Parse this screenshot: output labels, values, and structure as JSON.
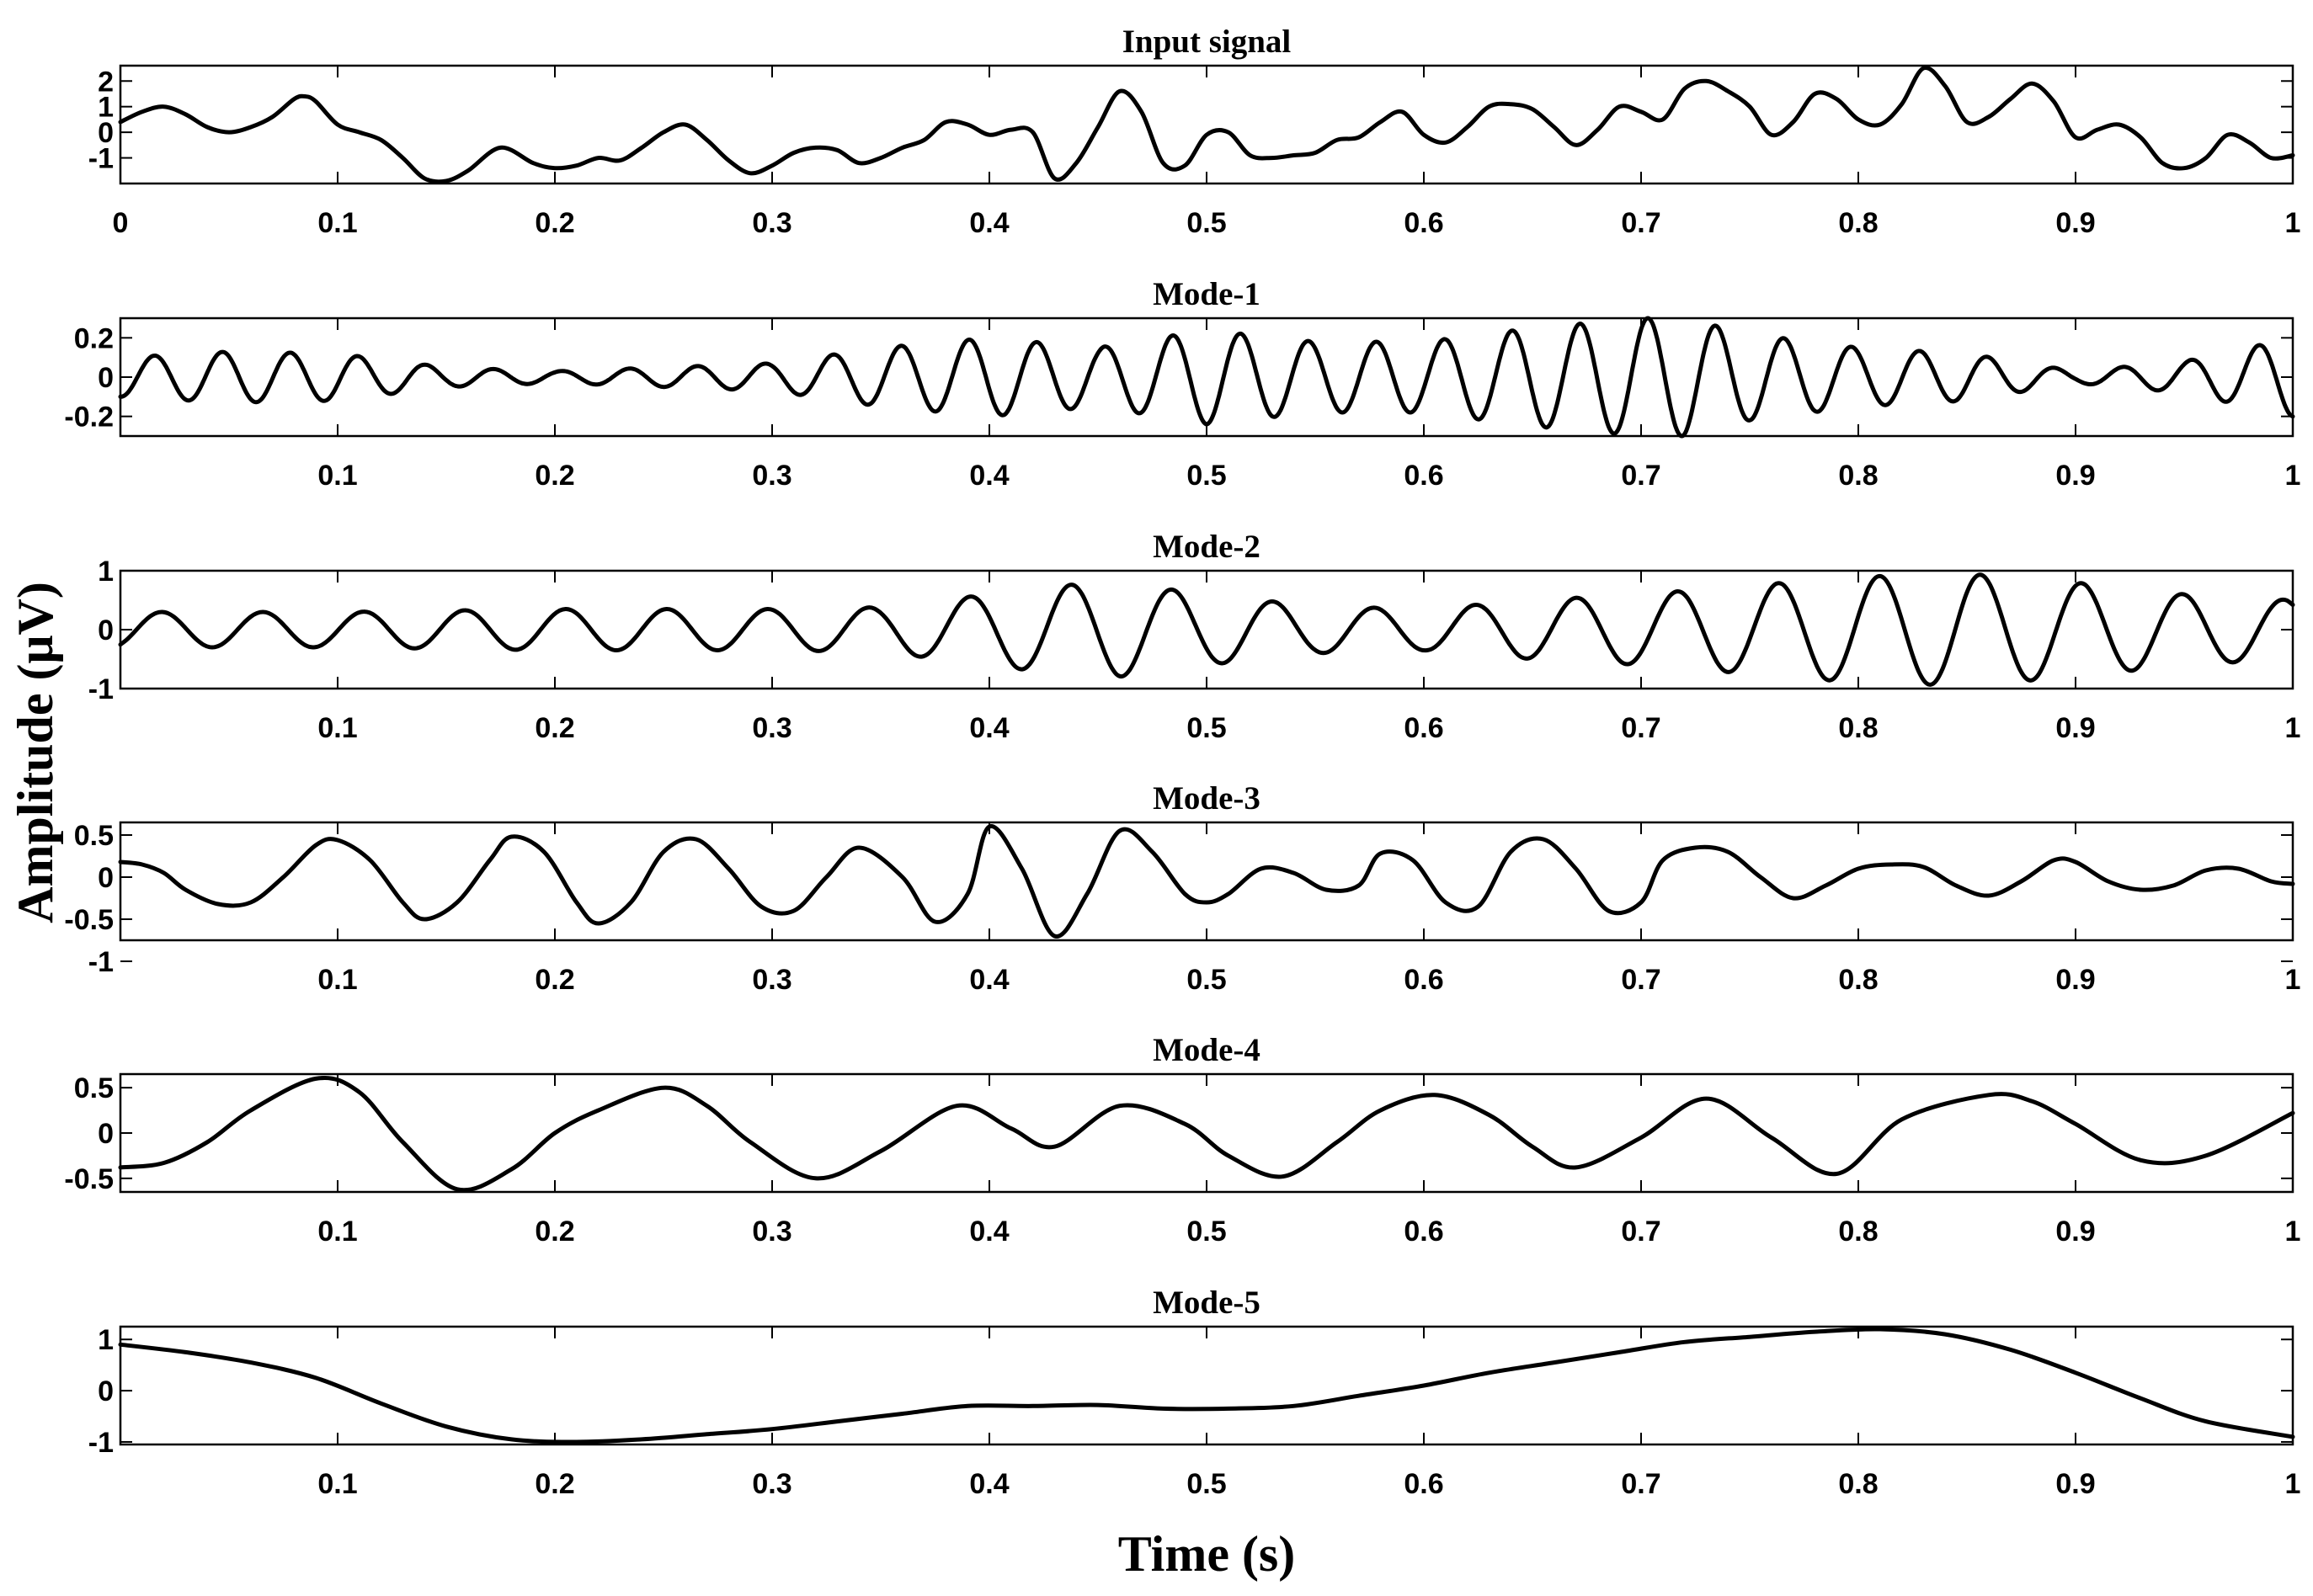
{
  "figure": {
    "xlabel": "Time (s)",
    "ylabel": "Amplitude (μV)",
    "line_color": "#000000"
  },
  "chart_data": [
    {
      "type": "line",
      "title": "Input signal",
      "xlim": [
        0,
        1
      ],
      "ylim": [
        -2,
        2.6
      ],
      "yticks": [
        2,
        1,
        0,
        -1
      ],
      "xticks": [
        0,
        0.1,
        0.2,
        0.3,
        0.4,
        0.5,
        0.6,
        0.7,
        0.8,
        0.9,
        1
      ],
      "xtick_labels": [
        "0",
        "0.1",
        "0.2",
        "0.3",
        "0.4",
        "0.5",
        "0.6",
        "0.7",
        "0.8",
        "0.9",
        "1"
      ],
      "grid": false,
      "series": [
        {
          "x": [
            0,
            0.01,
            0.02,
            0.03,
            0.04,
            0.05,
            0.06,
            0.07,
            0.08,
            0.085,
            0.09,
            0.1,
            0.11,
            0.12,
            0.13,
            0.14,
            0.15,
            0.16,
            0.175,
            0.19,
            0.2,
            0.21,
            0.22,
            0.23,
            0.24,
            0.25,
            0.26,
            0.27,
            0.28,
            0.29,
            0.3,
            0.31,
            0.32,
            0.33,
            0.34,
            0.35,
            0.36,
            0.37,
            0.38,
            0.39,
            0.4,
            0.41,
            0.42,
            0.43,
            0.44,
            0.45,
            0.46,
            0.47,
            0.48,
            0.49,
            0.5,
            0.51,
            0.52,
            0.53,
            0.54,
            0.55,
            0.56,
            0.57,
            0.58,
            0.59,
            0.6,
            0.61,
            0.62,
            0.63,
            0.64,
            0.65,
            0.66,
            0.67,
            0.68,
            0.69,
            0.7,
            0.71,
            0.72,
            0.73,
            0.74,
            0.75,
            0.76,
            0.77,
            0.78,
            0.79,
            0.8,
            0.81,
            0.82,
            0.83,
            0.84,
            0.85,
            0.86,
            0.87,
            0.88,
            0.89,
            0.9,
            0.91,
            0.92,
            0.93,
            0.94,
            0.95,
            0.96,
            0.97,
            0.98,
            0.99,
            1
          ],
          "y": [
            0.4,
            0.8,
            1.0,
            0.7,
            0.2,
            0.0,
            0.2,
            0.6,
            1.3,
            1.4,
            1.2,
            0.3,
            0.0,
            -0.3,
            -1.0,
            -1.8,
            -1.9,
            -1.5,
            -0.6,
            -1.2,
            -1.4,
            -1.3,
            -1.0,
            -1.1,
            -0.6,
            0.0,
            0.3,
            -0.3,
            -1.1,
            -1.6,
            -1.3,
            -0.8,
            -0.6,
            -0.7,
            -1.2,
            -1.0,
            -0.6,
            -0.3,
            0.4,
            0.3,
            -0.1,
            0.1,
            0.0,
            -1.8,
            -1.2,
            0.2,
            1.6,
            0.8,
            -1.2,
            -1.3,
            -0.1,
            0.0,
            -0.9,
            -1.0,
            -0.9,
            -0.8,
            -0.3,
            -0.2,
            0.4,
            0.8,
            -0.1,
            -0.4,
            0.2,
            1.0,
            1.1,
            0.9,
            0.2,
            -0.5,
            0.1,
            1.0,
            0.8,
            0.5,
            1.7,
            2.0,
            1.6,
            1.0,
            -0.1,
            0.4,
            1.5,
            1.3,
            0.5,
            0.3,
            1.1,
            2.5,
            1.8,
            0.4,
            0.6,
            1.3,
            1.9,
            1.2,
            -0.2,
            0.1,
            0.3,
            -0.2,
            -1.2,
            -1.4,
            -1.0,
            -0.1,
            -0.4,
            -1.0,
            -0.9
          ]
        }
      ]
    },
    {
      "type": "line",
      "title": "Mode-1",
      "xlim": [
        0,
        1
      ],
      "ylim": [
        -0.3,
        0.3
      ],
      "yticks": [
        0.2,
        0,
        -0.2
      ],
      "ytick_labels": [
        "0.2",
        "0",
        "-0.2"
      ],
      "xticks": [
        0.1,
        0.2,
        0.3,
        0.4,
        0.5,
        0.6,
        0.7,
        0.8,
        0.9,
        1
      ],
      "grid": false,
      "series": [
        {
          "envelope_t": [
            0,
            0.05,
            0.1,
            0.15,
            0.2,
            0.25,
            0.3,
            0.35,
            0.4,
            0.45,
            0.5,
            0.55,
            0.6,
            0.65,
            0.7,
            0.72,
            0.75,
            0.8,
            0.85,
            0.9,
            0.95,
            1
          ],
          "envelope_a": [
            0.1,
            0.13,
            0.12,
            0.05,
            0.03,
            0.05,
            0.07,
            0.15,
            0.2,
            0.15,
            0.24,
            0.18,
            0.18,
            0.25,
            0.3,
            0.3,
            0.22,
            0.15,
            0.12,
            0.03,
            0.08,
            0.2
          ],
          "cycles": 32,
          "phase": -1.57,
          "samples": 33
        }
      ]
    },
    {
      "type": "line",
      "title": "Mode-2",
      "xlim": [
        0,
        1
      ],
      "ylim": [
        -1,
        1
      ],
      "yticks": [
        1,
        0,
        -1
      ],
      "ytick_labels": [
        "1",
        "0",
        "-1"
      ],
      "xticks": [
        0.1,
        0.2,
        0.3,
        0.4,
        0.5,
        0.6,
        0.7,
        0.8,
        0.9,
        1
      ],
      "grid": false,
      "series": [
        {
          "envelope_t": [
            0,
            0.1,
            0.2,
            0.3,
            0.35,
            0.4,
            0.43,
            0.46,
            0.5,
            0.55,
            0.6,
            0.65,
            0.7,
            0.75,
            0.8,
            0.85,
            0.9,
            0.95,
            1
          ],
          "envelope_a": [
            0.3,
            0.3,
            0.35,
            0.35,
            0.38,
            0.6,
            0.75,
            0.8,
            0.6,
            0.4,
            0.35,
            0.5,
            0.6,
            0.75,
            0.9,
            0.95,
            0.8,
            0.6,
            0.5
          ],
          "cycles": 21.5,
          "phase": -1.0,
          "samples": 17
        }
      ]
    },
    {
      "type": "line",
      "title": "Mode-3",
      "xlim": [
        0,
        1
      ],
      "ylim": [
        -0.75,
        0.65
      ],
      "yticks": [
        0.5,
        0,
        -0.5,
        -1
      ],
      "ytick_labels": [
        "0.5",
        "0",
        "-0.5",
        "-1"
      ],
      "xticks": [
        0.1,
        0.2,
        0.3,
        0.4,
        0.5,
        0.6,
        0.7,
        0.8,
        0.9,
        1
      ],
      "grid": false,
      "series": [
        {
          "x": [
            0,
            0.01,
            0.02,
            0.03,
            0.045,
            0.06,
            0.075,
            0.09,
            0.1,
            0.115,
            0.13,
            0.14,
            0.155,
            0.17,
            0.18,
            0.195,
            0.21,
            0.22,
            0.235,
            0.25,
            0.265,
            0.28,
            0.295,
            0.31,
            0.325,
            0.34,
            0.36,
            0.375,
            0.39,
            0.4,
            0.415,
            0.43,
            0.445,
            0.46,
            0.475,
            0.49,
            0.5,
            0.51,
            0.525,
            0.54,
            0.555,
            0.57,
            0.58,
            0.595,
            0.61,
            0.625,
            0.64,
            0.655,
            0.67,
            0.685,
            0.7,
            0.71,
            0.725,
            0.74,
            0.755,
            0.77,
            0.785,
            0.8,
            0.815,
            0.83,
            0.845,
            0.86,
            0.875,
            0.89,
            0.9,
            0.915,
            0.93,
            0.945,
            0.96,
            0.975,
            0.99,
            1
          ],
          "y": [
            0.18,
            0.15,
            0.05,
            -0.15,
            -0.32,
            -0.3,
            0.0,
            0.38,
            0.44,
            0.2,
            -0.3,
            -0.5,
            -0.3,
            0.2,
            0.48,
            0.3,
            -0.3,
            -0.55,
            -0.3,
            0.3,
            0.45,
            0.1,
            -0.35,
            -0.4,
            0.0,
            0.35,
            0.0,
            -0.53,
            -0.2,
            0.6,
            0.1,
            -0.7,
            -0.2,
            0.55,
            0.3,
            -0.2,
            -0.3,
            -0.2,
            0.1,
            0.05,
            -0.15,
            -0.1,
            0.28,
            0.2,
            -0.3,
            -0.35,
            0.3,
            0.45,
            0.1,
            -0.4,
            -0.3,
            0.2,
            0.35,
            0.3,
            0.0,
            -0.25,
            -0.1,
            0.1,
            0.15,
            0.12,
            -0.1,
            -0.22,
            -0.05,
            0.2,
            0.18,
            -0.05,
            -0.15,
            -0.1,
            0.08,
            0.1,
            -0.05,
            -0.08
          ]
        }
      ]
    },
    {
      "type": "line",
      "title": "Mode-4",
      "xlim": [
        0,
        1
      ],
      "ylim": [
        -0.65,
        0.65
      ],
      "yticks": [
        0.5,
        0,
        -0.5
      ],
      "ytick_labels": [
        "0.5",
        "0",
        "-0.5"
      ],
      "xticks": [
        0.1,
        0.2,
        0.3,
        0.4,
        0.5,
        0.6,
        0.7,
        0.8,
        0.9,
        1
      ],
      "grid": false,
      "series": [
        {
          "x": [
            0,
            0.02,
            0.04,
            0.06,
            0.09,
            0.11,
            0.13,
            0.155,
            0.18,
            0.2,
            0.22,
            0.25,
            0.27,
            0.29,
            0.32,
            0.35,
            0.385,
            0.41,
            0.43,
            0.46,
            0.49,
            0.51,
            0.535,
            0.56,
            0.58,
            0.605,
            0.63,
            0.65,
            0.67,
            0.7,
            0.73,
            0.76,
            0.79,
            0.82,
            0.86,
            0.88,
            0.9,
            0.93,
            0.96,
            1
          ],
          "y": [
            -0.38,
            -0.33,
            -0.1,
            0.25,
            0.6,
            0.45,
            -0.1,
            -0.62,
            -0.4,
            0.0,
            0.25,
            0.5,
            0.3,
            -0.1,
            -0.5,
            -0.2,
            0.3,
            0.05,
            -0.15,
            0.3,
            0.1,
            -0.25,
            -0.48,
            -0.1,
            0.25,
            0.42,
            0.2,
            -0.15,
            -0.38,
            -0.05,
            0.38,
            -0.05,
            -0.45,
            0.15,
            0.42,
            0.35,
            0.1,
            -0.3,
            -0.25,
            0.22
          ]
        }
      ]
    },
    {
      "type": "line",
      "title": "Mode-5",
      "xlim": [
        0,
        1
      ],
      "ylim": [
        -1.05,
        1.25
      ],
      "yticks": [
        1,
        0,
        -1
      ],
      "ytick_labels": [
        "1",
        "0",
        "-1"
      ],
      "xticks": [
        0.1,
        0.2,
        0.3,
        0.4,
        0.5,
        0.6,
        0.7,
        0.8,
        0.9,
        1
      ],
      "grid": false,
      "series": [
        {
          "x": [
            0,
            0.03,
            0.06,
            0.09,
            0.12,
            0.15,
            0.18,
            0.21,
            0.24,
            0.27,
            0.3,
            0.33,
            0.36,
            0.39,
            0.42,
            0.45,
            0.48,
            0.51,
            0.54,
            0.57,
            0.6,
            0.63,
            0.66,
            0.69,
            0.72,
            0.75,
            0.78,
            0.81,
            0.84,
            0.87,
            0.9,
            0.93,
            0.96,
            1
          ],
          "y": [
            0.9,
            0.75,
            0.55,
            0.25,
            -0.25,
            -0.7,
            -0.95,
            -1.0,
            -0.95,
            -0.85,
            -0.75,
            -0.6,
            -0.45,
            -0.3,
            -0.3,
            -0.28,
            -0.35,
            -0.35,
            -0.3,
            -0.1,
            0.1,
            0.35,
            0.55,
            0.75,
            0.95,
            1.05,
            1.15,
            1.2,
            1.1,
            0.8,
            0.35,
            -0.15,
            -0.6,
            -0.9
          ]
        }
      ]
    }
  ]
}
